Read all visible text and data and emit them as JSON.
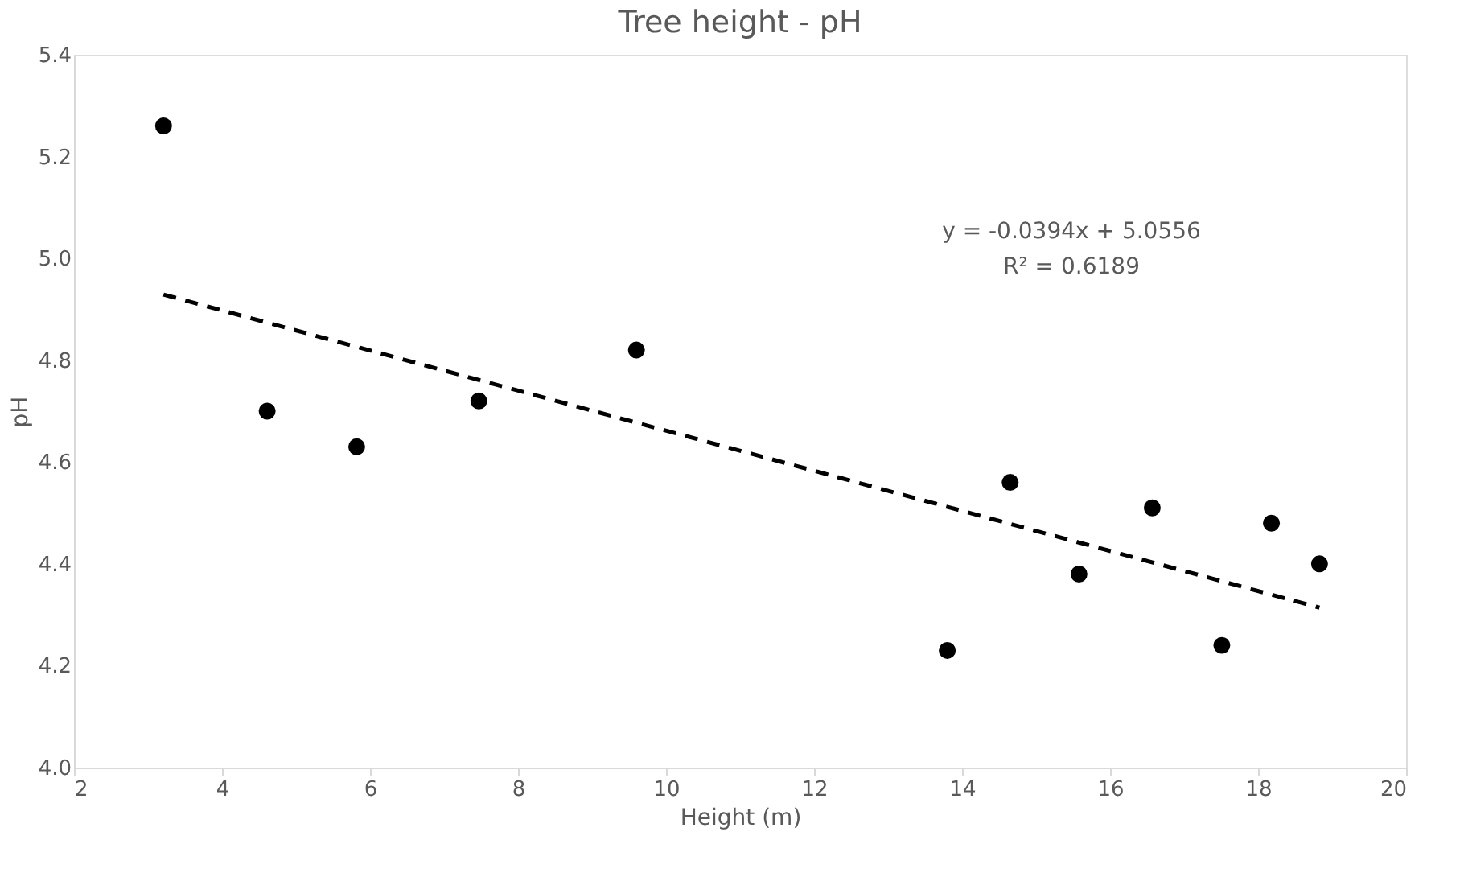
{
  "chart_data": {
    "type": "scatter",
    "title": "Tree height - pH",
    "xlabel": "Height (m)",
    "ylabel": "pH",
    "xlim": [
      2,
      20
    ],
    "xticks": [
      2,
      4,
      6,
      8,
      10,
      12,
      14,
      16,
      18,
      20
    ],
    "ylim": [
      4.0,
      5.4
    ],
    "yticks": [
      {
        "value": 4.0,
        "label": "4.0"
      },
      {
        "value": 4.2,
        "label": "4.2"
      },
      {
        "value": 4.4,
        "label": "4.4"
      },
      {
        "value": 4.6,
        "label": "4.6"
      },
      {
        "value": 4.8,
        "label": "4.8"
      },
      {
        "value": 5.0,
        "label": "5.0"
      },
      {
        "value": 5.2,
        "label": "5.2"
      },
      {
        "value": 5.4,
        "label": "5.4"
      }
    ],
    "grid": false,
    "annotations": [
      "y = -0.0394x + 5.0556",
      "R² = 0.6189"
    ],
    "series": [
      {
        "color": "#000000",
        "marker": "circle",
        "x": [
          3.21,
          4.61,
          5.82,
          7.47,
          9.6,
          13.8,
          14.65,
          15.58,
          16.57,
          17.51,
          18.18,
          18.83
        ],
        "values": [
          5.26,
          4.7,
          4.63,
          4.72,
          4.82,
          4.23,
          4.56,
          4.38,
          4.51,
          4.24,
          4.48,
          4.4
        ]
      },
      {
        "type": "line",
        "color": "#000000",
        "line_style": "dashed",
        "marker": "none",
        "x": [
          3.21,
          18.83
        ],
        "values": [
          4.929,
          4.314
        ]
      }
    ]
  }
}
